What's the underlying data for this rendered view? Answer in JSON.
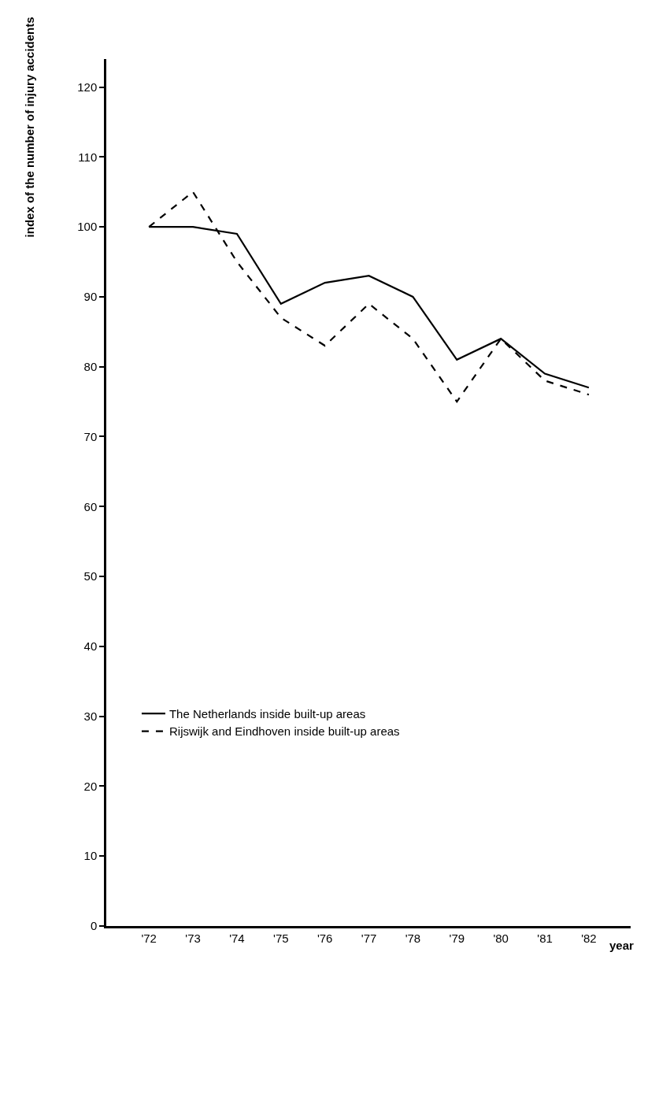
{
  "chart_data": {
    "type": "line",
    "xlabel": "year",
    "ylabel": "index of the number of injury accidents",
    "categories": [
      "'72",
      "'73",
      "'74",
      "'75",
      "'76",
      "'77",
      "'78",
      "'79",
      "'80",
      "'81",
      "'82"
    ],
    "series": [
      {
        "name": "The Netherlands inside built-up areas",
        "color": "#000000",
        "line_style": "solid",
        "values": [
          100,
          100,
          99,
          89,
          92,
          93,
          90,
          81,
          84,
          79,
          77
        ]
      },
      {
        "name": "Rijswijk and Eindhoven inside built-up areas",
        "color": "#000000",
        "line_style": "dashed",
        "values": [
          100,
          105,
          95,
          87,
          83,
          89,
          84,
          75,
          84,
          78,
          76
        ]
      }
    ],
    "ylim": [
      0,
      124
    ],
    "yticks": [
      0,
      10,
      20,
      30,
      40,
      50,
      60,
      70,
      80,
      90,
      100,
      110,
      120
    ],
    "legend": "bottom left",
    "marker": "none"
  }
}
